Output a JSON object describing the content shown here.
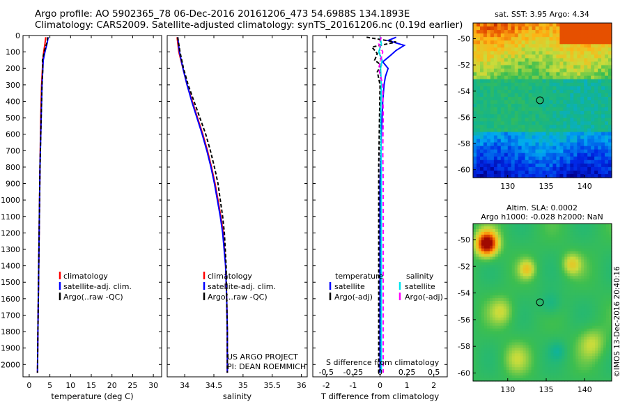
{
  "header": {
    "line1": "Argo profile: AO 5902365_78 06-Dec-2016 20161206_473 54.6988S 134.1893E",
    "line2": "Climatology: CARS2009. Satellite-adjusted climatology: synTS_20161206.nc (0.19d earlier)"
  },
  "colors": {
    "climatology": "#ff0000",
    "satellite": "#0000ff",
    "argo": "#000000",
    "sal_satellite": "#00e5ee",
    "sal_argo": "#ff00ff"
  },
  "depth_ticks": [
    "0",
    "100",
    "200",
    "300",
    "400",
    "500",
    "600",
    "700",
    "800",
    "900",
    "1000",
    "1100",
    "1200",
    "1300",
    "1400",
    "1500",
    "1600",
    "1700",
    "1800",
    "1900",
    "2000"
  ],
  "chart_data": [
    {
      "type": "line",
      "name": "temperature-profile",
      "xlabel": "temperature (deg C)",
      "xlim": [
        -1.5,
        32
      ],
      "ylim": [
        2075,
        0
      ],
      "xticks": [
        "0",
        "5",
        "10",
        "15",
        "20",
        "25",
        "30"
      ],
      "xtick_values": [
        0,
        5,
        10,
        15,
        20,
        25,
        30
      ],
      "legend": [
        "climatology",
        "satellite-adj. clim.",
        "Argo(..raw -QC)"
      ],
      "series": [
        {
          "name": "climatology",
          "depth": [
            10,
            50,
            100,
            150,
            200,
            300,
            500,
            800,
            1000,
            1400,
            1800,
            2050
          ],
          "values": [
            4.0,
            3.8,
            3.5,
            3.3,
            3.2,
            3.0,
            2.8,
            2.6,
            2.5,
            2.3,
            2.1,
            2.0
          ]
        },
        {
          "name": "satellite-adj. clim.",
          "depth": [
            10,
            50,
            100,
            150,
            200,
            300,
            500,
            800,
            1000,
            1400,
            1800,
            2050
          ],
          "values": [
            4.6,
            4.3,
            3.8,
            3.4,
            3.3,
            3.1,
            2.9,
            2.6,
            2.5,
            2.3,
            2.1,
            2.0
          ]
        },
        {
          "name": "Argo",
          "depth": [
            10,
            50,
            100,
            150,
            200,
            300,
            500,
            800,
            1000,
            1400,
            1800,
            2050
          ],
          "values": [
            4.5,
            4.2,
            3.6,
            3.2,
            3.3,
            3.1,
            2.9,
            2.6,
            2.5,
            2.3,
            2.1,
            2.0
          ]
        }
      ]
    },
    {
      "type": "line",
      "name": "salinity-profile",
      "xlabel": "salinity",
      "xlim": [
        33.7,
        36.1
      ],
      "ylim": [
        2075,
        0
      ],
      "xticks": [
        "34",
        "34.5",
        "35",
        "35.5",
        "36"
      ],
      "xtick_values": [
        34,
        34.5,
        35,
        35.5,
        36
      ],
      "legend": [
        "climatology",
        "satellite-adj. clim.",
        "Argo(..raw -QC)"
      ],
      "series": [
        {
          "name": "climatology",
          "depth": [
            10,
            100,
            200,
            300,
            400,
            500,
            600,
            700,
            800,
            900,
            1000,
            1100,
            1200,
            1400,
            1600,
            1800,
            2050
          ],
          "values": [
            33.87,
            33.9,
            33.97,
            34.04,
            34.13,
            34.22,
            34.31,
            34.39,
            34.46,
            34.52,
            34.57,
            34.62,
            34.66,
            34.7,
            34.72,
            34.73,
            34.73
          ]
        },
        {
          "name": "satellite-adj. clim.",
          "depth": [
            10,
            100,
            200,
            300,
            400,
            500,
            600,
            700,
            800,
            900,
            1000,
            1100,
            1200,
            1400,
            1600,
            1800,
            2050
          ],
          "values": [
            33.88,
            33.91,
            33.97,
            34.04,
            34.12,
            34.21,
            34.3,
            34.38,
            34.45,
            34.51,
            34.56,
            34.61,
            34.65,
            34.7,
            34.72,
            34.73,
            34.73
          ]
        },
        {
          "name": "Argo",
          "depth": [
            10,
            100,
            200,
            300,
            400,
            500,
            600,
            700,
            800,
            900,
            1000,
            1100,
            1200,
            1400,
            1600,
            1800,
            2050
          ],
          "values": [
            33.88,
            33.92,
            33.98,
            34.06,
            34.16,
            34.26,
            34.36,
            34.44,
            34.51,
            34.57,
            34.61,
            34.65,
            34.68,
            34.71,
            34.72,
            34.73,
            34.73
          ]
        }
      ],
      "annotation": [
        "US ARGO PROJECT",
        "PI: DEAN ROEMMICH"
      ]
    },
    {
      "type": "line",
      "name": "difference-profile",
      "xlabel": "T difference from climatology",
      "top_label": "S difference from climatology",
      "xlim": [
        -2.5,
        2.5
      ],
      "ylim": [
        2075,
        0
      ],
      "xticks": [
        "-2",
        "-1",
        "0",
        "1",
        "2"
      ],
      "xtick_values": [
        -2,
        -1,
        0,
        1,
        2
      ],
      "sticks": [
        "-0.5",
        "-0.25",
        "0",
        "0.25",
        "0.5"
      ],
      "stick_values": [
        -2,
        -1,
        0,
        1,
        2
      ],
      "legend_temperature": [
        "temperature",
        "satellite",
        "Argo(-adj)"
      ],
      "legend_salinity": [
        "salinity",
        "satellite",
        "Argo(-adj)"
      ],
      "series": [
        {
          "name": "T satellite",
          "depth": [
            10,
            30,
            60,
            90,
            120,
            160,
            200,
            250,
            300,
            400,
            600,
            900,
            1500,
            2050
          ],
          "values": [
            0.6,
            0.3,
            0.9,
            0.6,
            0.4,
            0.1,
            0.3,
            0.2,
            0.15,
            0.1,
            0.05,
            0.0,
            0.0,
            0.0
          ]
        },
        {
          "name": "T Argo(-adj)",
          "depth": [
            10,
            40,
            70,
            110,
            150,
            180,
            220,
            300,
            500,
            800,
            1200,
            1600,
            2050
          ],
          "values": [
            -0.5,
            0.6,
            -0.3,
            -0.1,
            -0.2,
            0.05,
            -0.1,
            0.0,
            -0.02,
            -0.05,
            -0.05,
            -0.05,
            -0.05
          ]
        },
        {
          "name": "S satellite",
          "depth": [
            10,
            50,
            100,
            150,
            200,
            300,
            500,
            800,
            1200,
            2050
          ],
          "values": [
            0.0,
            0.05,
            -0.05,
            0.08,
            0.02,
            0.05,
            0.02,
            0.05,
            0.05,
            0.05
          ]
        },
        {
          "name": "S Argo(-adj)",
          "depth": [
            10,
            50,
            100,
            200,
            300,
            500,
            700,
            900,
            1200,
            1500,
            1800,
            2050
          ],
          "values": [
            0.05,
            -0.05,
            0.1,
            -0.05,
            0.1,
            0.12,
            0.1,
            0.12,
            0.12,
            0.12,
            0.12,
            0.12
          ]
        }
      ]
    }
  ],
  "sst_map": {
    "title": "sat. SST: 3.95 Argo: 4.34",
    "yticks": [
      "-50",
      "-52",
      "-54",
      "-56",
      "-58",
      "-60"
    ],
    "xticks": [
      "130",
      "135",
      "140"
    ],
    "argo_position": [
      134.19,
      -54.7
    ]
  },
  "sla_map": {
    "title1": "Altim. SLA: 0.0002",
    "title2": "Argo h1000: -0.028 h2000: NaN",
    "yticks": [
      "-50",
      "-52",
      "-54",
      "-56",
      "-58",
      "-60"
    ],
    "xticks": [
      "130",
      "135",
      "140"
    ],
    "argo_position": [
      134.19,
      -54.7
    ],
    "credit": "©IMOS 13-Dec-2016 20:40:16"
  }
}
